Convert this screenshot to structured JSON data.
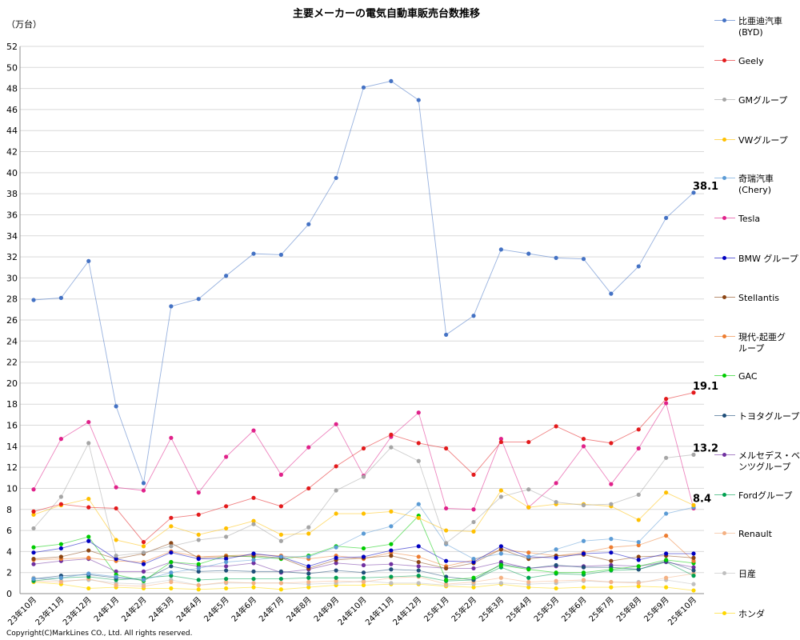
{
  "copyright": "Copyright(C)MarkLines CO., Ltd. All rights reserved.",
  "chart_data": {
    "type": "line",
    "title": "主要メーカーの電気自動車販売台数推移",
    "ylabel": "（万台）",
    "ylim": [
      0,
      52
    ],
    "ytick_step": 2,
    "grid": true,
    "legend_position": "right",
    "categories": [
      "23年10月",
      "23年11月",
      "23年12月",
      "24年1月",
      "24年2月",
      "24年3月",
      "24年4月",
      "24年5月",
      "24年6月",
      "24年7月",
      "24年8月",
      "24年9月",
      "24年10月",
      "24年11月",
      "24年12月",
      "25年1月",
      "25年2月",
      "25年3月",
      "25年4月",
      "25年5月",
      "25年6月",
      "25年7月",
      "25年8月",
      "25年9月",
      "25年10月"
    ],
    "series": [
      {
        "name": "比亜迪汽車\n(BYD)",
        "color": "#4472C4",
        "values": [
          27.9,
          28.1,
          31.6,
          17.8,
          10.5,
          27.3,
          28.0,
          30.2,
          32.3,
          32.2,
          35.1,
          39.5,
          48.1,
          48.7,
          46.9,
          24.6,
          26.4,
          32.7,
          32.3,
          31.9,
          31.8,
          28.5,
          31.1,
          35.7,
          38.1
        ]
      },
      {
        "name": "Geely",
        "color": "#E31A1C",
        "values": [
          7.8,
          8.5,
          8.2,
          8.1,
          4.9,
          7.2,
          7.5,
          8.3,
          9.1,
          8.3,
          10.0,
          12.1,
          13.8,
          15.1,
          14.3,
          13.8,
          11.3,
          14.4,
          14.4,
          15.9,
          14.7,
          14.3,
          15.6,
          18.5,
          19.1
        ]
      },
      {
        "name": "GMグループ",
        "color": "#A5A5A5",
        "values": [
          6.2,
          9.2,
          14.3,
          3.6,
          3.9,
          4.5,
          5.1,
          5.4,
          6.6,
          5.0,
          6.3,
          9.8,
          11.1,
          13.9,
          12.6,
          4.8,
          6.8,
          9.2,
          9.9,
          8.7,
          8.4,
          8.5,
          9.4,
          12.9,
          13.2
        ]
      },
      {
        "name": "VWグループ",
        "color": "#FFC000",
        "values": [
          7.5,
          8.4,
          9.0,
          5.1,
          4.5,
          6.4,
          5.6,
          6.2,
          6.9,
          5.6,
          5.7,
          7.6,
          7.6,
          7.8,
          7.2,
          6.0,
          5.9,
          9.8,
          8.2,
          8.5,
          8.5,
          8.3,
          7.0,
          9.6,
          8.4
        ]
      },
      {
        "name": "奇瑞汽車\n(Chery)",
        "color": "#5B9BD5",
        "values": [
          1.4,
          1.5,
          1.9,
          1.6,
          1.3,
          2.0,
          2.4,
          3.0,
          3.2,
          3.5,
          3.5,
          4.4,
          5.7,
          6.4,
          8.5,
          4.7,
          3.3,
          3.8,
          3.5,
          4.2,
          5.0,
          5.2,
          4.9,
          7.6,
          8.2
        ]
      },
      {
        "name": "Tesla",
        "color": "#E0218A",
        "values": [
          9.9,
          14.7,
          16.3,
          10.1,
          9.8,
          14.8,
          9.6,
          13.0,
          15.5,
          11.3,
          13.9,
          16.1,
          11.2,
          14.9,
          17.2,
          8.1,
          8.0,
          14.7,
          8.2,
          10.5,
          14.0,
          10.4,
          13.8,
          18.1,
          8.1
        ]
      },
      {
        "name": "BMW グループ",
        "color": "#0000C0",
        "values": [
          3.9,
          4.3,
          5.0,
          3.3,
          2.8,
          3.9,
          3.3,
          3.3,
          3.8,
          3.5,
          2.6,
          3.4,
          3.5,
          4.1,
          4.5,
          3.1,
          3.0,
          4.5,
          3.5,
          3.4,
          3.8,
          3.9,
          3.2,
          3.8,
          3.8
        ]
      },
      {
        "name": "Stellantis",
        "color": "#8B4513",
        "values": [
          3.3,
          3.5,
          4.1,
          3.3,
          3.8,
          4.8,
          3.4,
          3.5,
          3.6,
          3.4,
          2.4,
          3.2,
          3.4,
          3.6,
          3.0,
          2.4,
          2.9,
          4.2,
          3.3,
          3.6,
          3.7,
          3.1,
          3.5,
          3.6,
          3.4
        ]
      },
      {
        "name": "現代-起亜グ\nループ",
        "color": "#ED7D31",
        "values": [
          3.2,
          3.3,
          3.4,
          3.1,
          3.0,
          4.0,
          3.5,
          3.6,
          3.7,
          3.6,
          3.3,
          3.6,
          3.3,
          3.9,
          3.5,
          2.6,
          3.2,
          4.2,
          3.9,
          3.6,
          3.9,
          4.4,
          4.6,
          5.5,
          3.1
        ]
      },
      {
        "name": "GAC",
        "color": "#00CC00",
        "values": [
          4.4,
          4.7,
          5.4,
          1.8,
          1.2,
          3.0,
          2.8,
          3.6,
          3.5,
          3.3,
          3.6,
          4.5,
          4.3,
          4.7,
          7.4,
          1.3,
          1.5,
          2.7,
          2.3,
          2.0,
          2.0,
          2.3,
          2.6,
          3.2,
          2.9
        ]
      },
      {
        "name": "トヨタグループ",
        "color": "#1F4E79",
        "values": [
          1.4,
          1.7,
          1.8,
          1.5,
          1.3,
          2.6,
          2.1,
          2.2,
          2.1,
          2.1,
          1.9,
          2.2,
          2.0,
          2.3,
          2.2,
          1.6,
          1.3,
          2.8,
          2.4,
          2.7,
          2.5,
          2.5,
          2.3,
          3.1,
          2.2
        ]
      },
      {
        "name": "メルセデス・ベ\nンツグループ",
        "color": "#7030A0",
        "values": [
          2.8,
          3.1,
          3.3,
          2.1,
          2.1,
          3.0,
          2.6,
          2.6,
          2.9,
          2.0,
          2.3,
          2.9,
          2.7,
          2.8,
          2.6,
          2.4,
          2.4,
          3.0,
          2.4,
          2.6,
          2.6,
          2.7,
          2.6,
          3.0,
          2.5
        ]
      },
      {
        "name": "Fordグループ",
        "color": "#00A050",
        "values": [
          1.2,
          1.5,
          1.6,
          1.3,
          1.5,
          1.7,
          1.3,
          1.4,
          1.4,
          1.4,
          1.5,
          1.5,
          1.5,
          1.6,
          1.7,
          1.2,
          1.3,
          2.5,
          1.5,
          1.9,
          1.8,
          2.2,
          2.3,
          3.0,
          1.7
        ]
      },
      {
        "name": "Renault",
        "color": "#F4B183",
        "values": [
          1.2,
          1.1,
          1.4,
          0.8,
          0.7,
          1.1,
          0.8,
          1.1,
          1.0,
          1.0,
          1.1,
          1.2,
          1.1,
          1.5,
          1.6,
          0.9,
          1.1,
          1.5,
          1.1,
          1.2,
          1.3,
          1.1,
          1.0,
          1.5,
          1.9
        ]
      },
      {
        "name": "日産",
        "color": "#BFBFBF",
        "values": [
          1.5,
          1.2,
          1.3,
          1.0,
          0.9,
          1.3,
          0.8,
          1.0,
          1.0,
          1.0,
          0.9,
          1.0,
          1.2,
          1.0,
          1.0,
          0.8,
          0.9,
          1.0,
          0.9,
          1.0,
          1.2,
          1.1,
          1.1,
          1.3,
          0.9
        ]
      },
      {
        "name": "ホンダ",
        "color": "#FFD700",
        "values": [
          1.1,
          0.9,
          0.5,
          0.6,
          0.5,
          0.5,
          0.4,
          0.5,
          0.6,
          0.4,
          0.6,
          0.8,
          0.8,
          0.9,
          0.9,
          0.7,
          0.6,
          0.9,
          0.6,
          0.5,
          0.6,
          0.6,
          0.7,
          0.6,
          0.3
        ]
      }
    ],
    "annotations": [
      {
        "text": "38.1",
        "series": "比亜迪汽車\n(BYD)",
        "category": "25年10月"
      },
      {
        "text": "19.1",
        "series": "Geely",
        "category": "25年10月"
      },
      {
        "text": "13.2",
        "series": "GMグループ",
        "category": "25年10月"
      },
      {
        "text": "8.4",
        "series": "VWグループ",
        "category": "25年10月"
      }
    ]
  }
}
